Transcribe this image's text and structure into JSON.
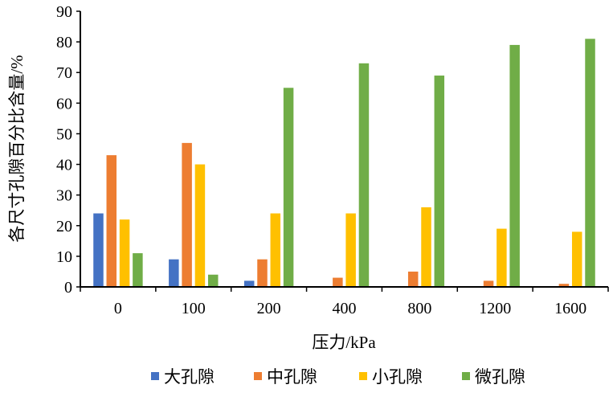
{
  "chart_data": {
    "type": "bar",
    "xlabel": "压力/kPa",
    "ylabel": "各尺寸孔隙百分比含量/%",
    "ylim": [
      0,
      90
    ],
    "yticks": [
      0,
      10,
      20,
      30,
      40,
      50,
      60,
      70,
      80,
      90
    ],
    "categories": [
      "0",
      "100",
      "200",
      "400",
      "800",
      "1200",
      "1600"
    ],
    "grid": false,
    "legend_position": "bottom",
    "series": [
      {
        "name": "大孔隙",
        "color": "#4472C4",
        "values": [
          24,
          9,
          2,
          0,
          0,
          0,
          0
        ]
      },
      {
        "name": "中孔隙",
        "color": "#ED7D31",
        "values": [
          43,
          47,
          9,
          3,
          5,
          2,
          1
        ]
      },
      {
        "name": "小孔隙",
        "color": "#FFC000",
        "values": [
          22,
          40,
          24,
          24,
          26,
          19,
          18
        ]
      },
      {
        "name": "微孔隙",
        "color": "#70AD47",
        "values": [
          11,
          4,
          65,
          73,
          69,
          79,
          81
        ]
      }
    ]
  }
}
